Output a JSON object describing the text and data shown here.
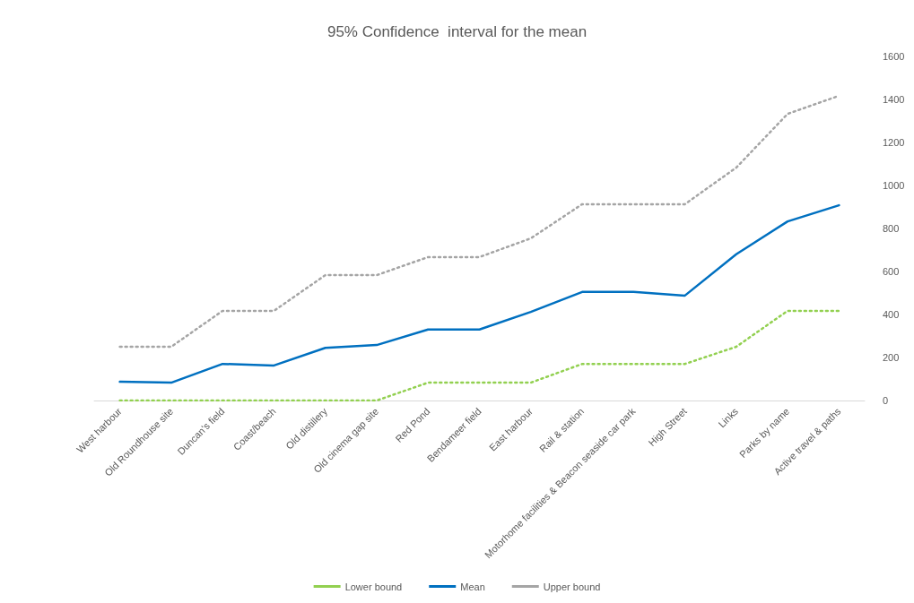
{
  "chart_data": {
    "type": "line",
    "title": "95% Confidence  interval for the mean",
    "categories": [
      "West harbour",
      "Old Roundhouse site",
      "Duncan's field",
      "Coast/beach",
      "Old distillery",
      "Old cinema gap site",
      "Red Pond",
      "Bendameer field",
      "East harbour",
      "Rail & station",
      "Motorhome facilities & Beacon seaside car park",
      "High Street",
      "Links",
      "Parks by name",
      "Active travel & paths"
    ],
    "series": [
      {
        "name": "Lower bound",
        "color": "#92d050",
        "line_style": "dotted",
        "values": [
          0,
          0,
          0,
          0,
          0,
          0,
          83,
          83,
          83,
          170,
          170,
          170,
          250,
          417,
          417
        ]
      },
      {
        "name": "Mean",
        "color": "#0070c0",
        "line_style": "solid",
        "values": [
          87,
          83,
          170,
          163,
          245,
          258,
          330,
          330,
          412,
          505,
          505,
          488,
          680,
          833,
          908
        ]
      },
      {
        "name": "Upper bound",
        "color": "#a5a5a5",
        "line_style": "dotted",
        "values": [
          250,
          250,
          417,
          417,
          583,
          583,
          667,
          667,
          754,
          913,
          913,
          913,
          1083,
          1333,
          1417
        ]
      }
    ],
    "ylim": [
      0,
      1600
    ],
    "yticks": [
      0,
      200,
      400,
      600,
      800,
      1000,
      1200,
      1400,
      1600
    ],
    "grid": false,
    "legend": "bottom",
    "marker": "none"
  }
}
